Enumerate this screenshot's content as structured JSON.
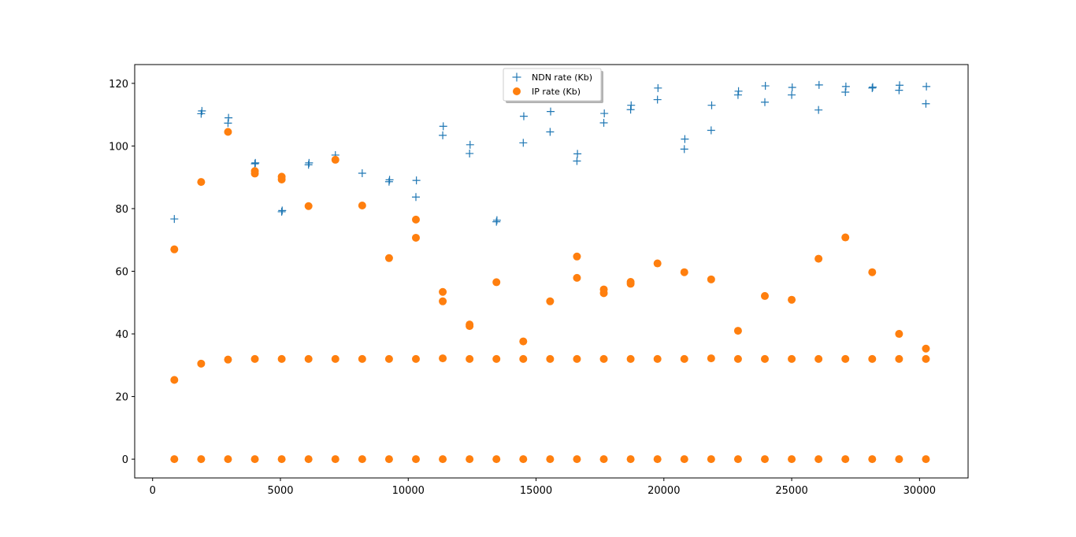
{
  "chart_data": {
    "type": "scatter",
    "title": "",
    "xlabel": "",
    "ylabel": "",
    "xlim": [
      -700,
      31900
    ],
    "ylim": [
      -6,
      126
    ],
    "grid": false,
    "legend_position": "top-center",
    "xticks": [
      0,
      5000,
      10000,
      15000,
      20000,
      25000,
      30000
    ],
    "yticks": [
      0,
      20,
      40,
      60,
      80,
      100,
      120
    ],
    "series": [
      {
        "name": "NDN rate (Kb)",
        "marker": "plus",
        "color": "#1f77b4",
        "x": [
          850,
          1900,
          1930,
          2950,
          2970,
          4000,
          4020,
          5050,
          5070,
          6100,
          6120,
          7150,
          8200,
          9250,
          9270,
          10300,
          10320,
          11350,
          11370,
          12400,
          12420,
          13450,
          13470,
          14500,
          14520,
          15550,
          15570,
          16600,
          16620,
          17650,
          17670,
          18700,
          18720,
          19750,
          19770,
          20800,
          20820,
          21850,
          21870,
          22900,
          22920,
          23950,
          23970,
          25000,
          25020,
          26050,
          26070,
          27100,
          27120,
          28150,
          28170,
          29200,
          29220,
          30250,
          30270
        ],
        "y": [
          76.7,
          110.3,
          111.2,
          107.3,
          109.0,
          94.3,
          94.6,
          79.0,
          79.4,
          94.0,
          94.6,
          97.1,
          91.3,
          88.6,
          89.2,
          83.7,
          89.0,
          103.4,
          106.3,
          97.6,
          100.4,
          75.8,
          76.3,
          101.0,
          109.5,
          104.5,
          111.0,
          95.2,
          97.5,
          107.4,
          110.4,
          111.6,
          113.0,
          114.8,
          118.5,
          99.0,
          102.2,
          105.0,
          113.0,
          116.3,
          117.5,
          114.0,
          119.2,
          116.3,
          118.7,
          111.5,
          119.5,
          117.2,
          119.0,
          118.5,
          118.8,
          117.8,
          119.4,
          113.5,
          119.0
        ]
      },
      {
        "name": "IP rate (Kb)",
        "marker": "circle",
        "color": "#ff7f0e",
        "x": [
          850,
          850,
          850,
          1900,
          1900,
          1900,
          2950,
          2950,
          2950,
          4000,
          4000,
          4000,
          4000,
          5050,
          5050,
          5050,
          5050,
          6100,
          6100,
          6100,
          7150,
          7150,
          7150,
          8200,
          8200,
          8200,
          9250,
          9250,
          9250,
          10300,
          10300,
          10300,
          10300,
          11350,
          11350,
          11350,
          11350,
          12400,
          12400,
          12400,
          12400,
          13450,
          13450,
          13450,
          14500,
          14500,
          14500,
          15550,
          15550,
          15550,
          16600,
          16600,
          16600,
          16600,
          17650,
          17650,
          17650,
          17650,
          18700,
          18700,
          18700,
          18700,
          19750,
          19750,
          19750,
          20800,
          20800,
          20800,
          21850,
          21850,
          21850,
          22900,
          22900,
          22900,
          23950,
          23950,
          23950,
          25000,
          25000,
          25000,
          26050,
          26050,
          26050,
          27100,
          27100,
          27100,
          28150,
          28150,
          28150,
          29200,
          29200,
          29200,
          30250,
          30250,
          30250
        ],
        "y": [
          0,
          25.3,
          67.0,
          0,
          30.5,
          88.5,
          0,
          31.8,
          104.5,
          0,
          32.0,
          91.2,
          92.0,
          0,
          32.0,
          89.3,
          90.2,
          0,
          32.0,
          80.8,
          0,
          32.0,
          95.6,
          0,
          32.0,
          81.0,
          0,
          32.0,
          64.2,
          0,
          32.0,
          70.7,
          76.5,
          0,
          32.2,
          50.4,
          53.4,
          0,
          32.0,
          42.5,
          43.0,
          0,
          32.0,
          56.5,
          0,
          32.0,
          37.6,
          0,
          32.0,
          50.4,
          0,
          32.0,
          57.9,
          64.7,
          0,
          32.0,
          53.0,
          54.2,
          0,
          32.0,
          56.0,
          56.6,
          0,
          32.0,
          62.5,
          0,
          32.0,
          59.7,
          0,
          32.2,
          57.4,
          0,
          32.0,
          41.0,
          0,
          32.0,
          52.1,
          0,
          32.0,
          50.9,
          0,
          32.0,
          64.0,
          0,
          32.0,
          70.8,
          0,
          32.0,
          59.7,
          0,
          32.0,
          40.0,
          0,
          32.0,
          35.3
        ]
      }
    ]
  }
}
